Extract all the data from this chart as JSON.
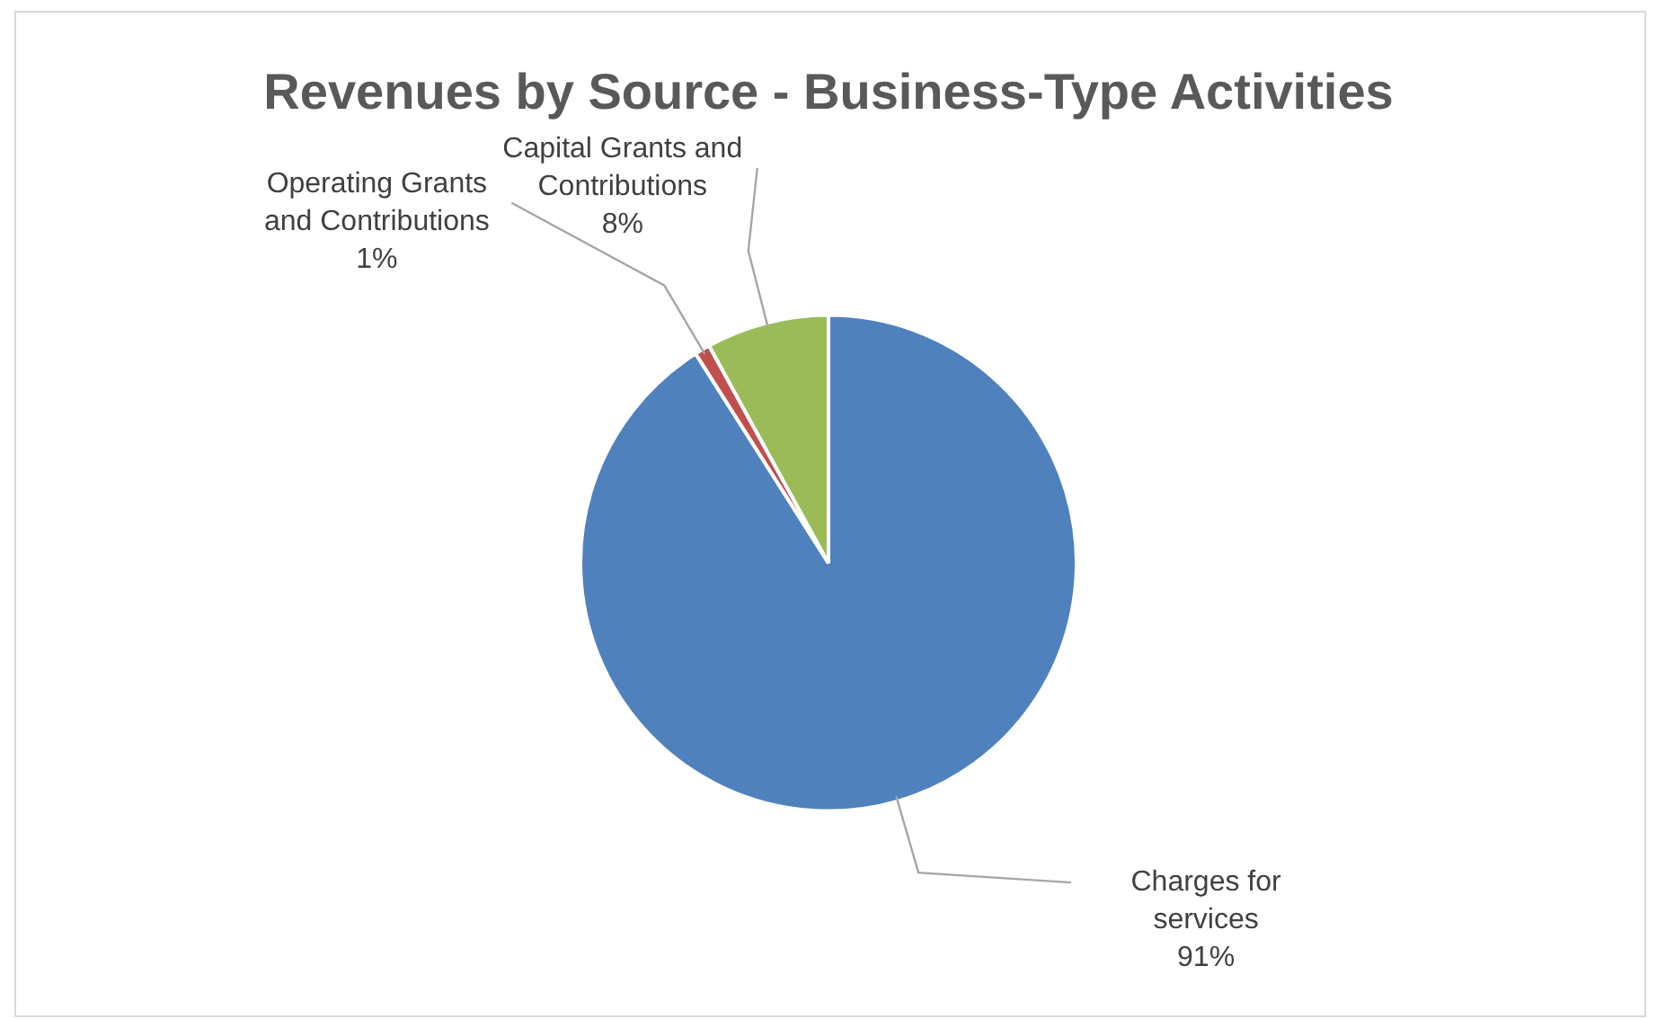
{
  "chart_data": {
    "type": "pie",
    "title": "Revenues by Source - Business-Type Activities",
    "categories": [
      "Charges for services",
      "Operating Grants and Contributions",
      "Capital Grants and Contributions"
    ],
    "values": [
      91,
      1,
      8
    ],
    "colors": [
      "#4f81bd",
      "#c0504d",
      "#9bbb59"
    ],
    "value_labels": [
      "91%",
      "1%",
      "8%"
    ],
    "legend": false
  }
}
